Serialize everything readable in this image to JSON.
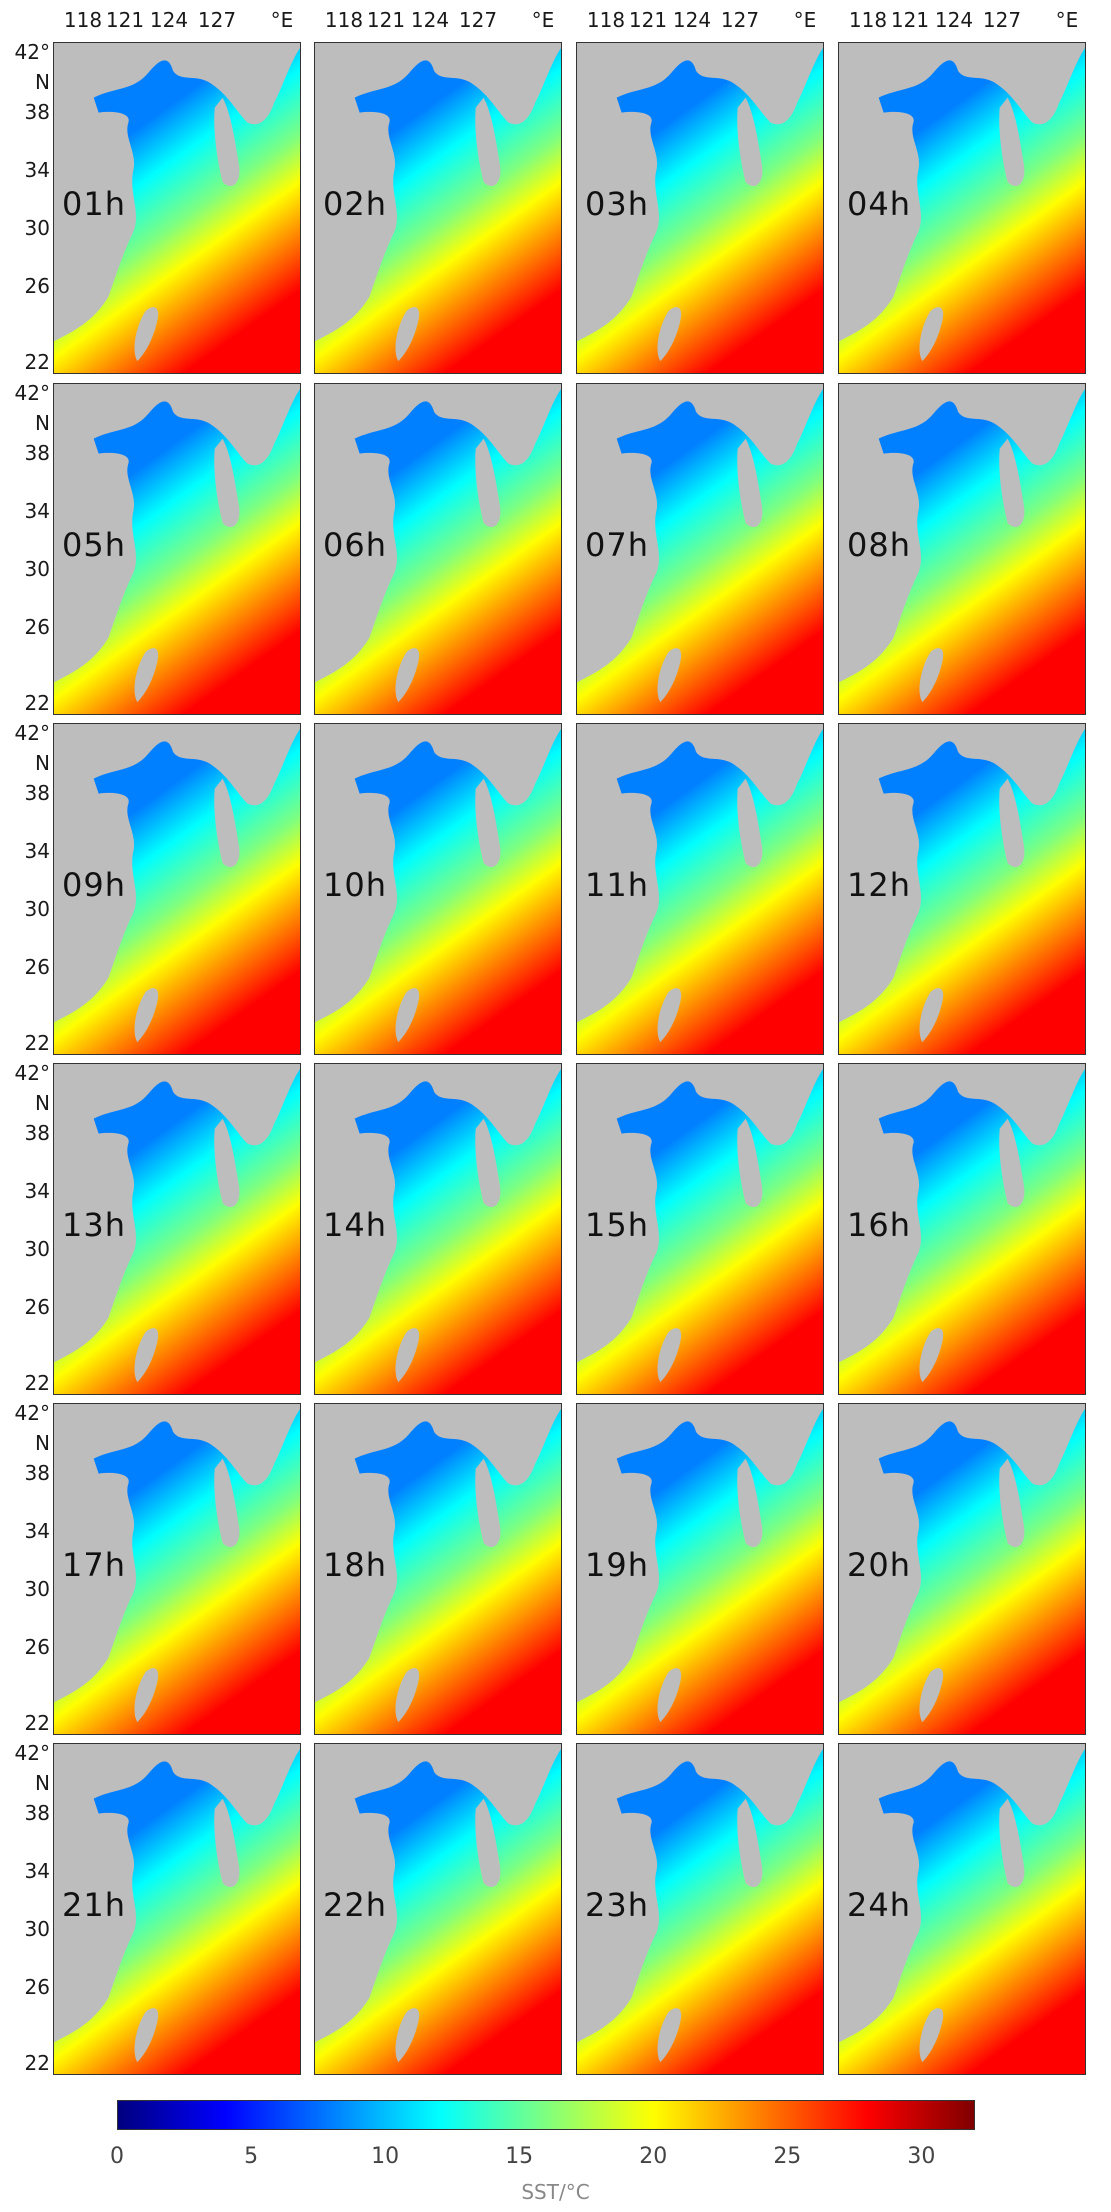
{
  "figure": {
    "lon_ticks": [
      "118",
      "121",
      "124",
      "127",
      "°E"
    ],
    "lat_ticks": [
      "42°",
      "N",
      "38",
      "34",
      "30",
      "26",
      "22"
    ],
    "panels": [
      "01h",
      "02h",
      "03h",
      "04h",
      "05h",
      "06h",
      "07h",
      "08h",
      "09h",
      "10h",
      "11h",
      "12h",
      "13h",
      "14h",
      "15h",
      "16h",
      "17h",
      "18h",
      "19h",
      "20h",
      "21h",
      "22h",
      "23h",
      "24h"
    ],
    "colors": {
      "land": "#bdbdbd",
      "colormap": [
        "#00007f",
        "#0000ff",
        "#007fff",
        "#00ffff",
        "#7fff7f",
        "#ffff00",
        "#ff7f00",
        "#ff0000",
        "#7f0000"
      ]
    }
  },
  "colorbar": {
    "ticks": [
      "0",
      "5",
      "10",
      "15",
      "20",
      "25",
      "30"
    ],
    "label": "SST/°C",
    "range": [
      0,
      32
    ]
  }
}
